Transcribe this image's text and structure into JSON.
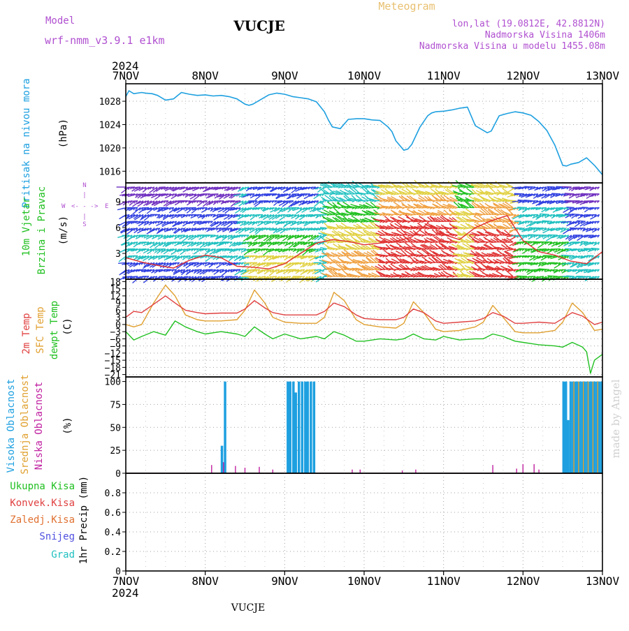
{
  "header": {
    "model_label": "Model",
    "model_name": "wrf-nmm_v3.9.1  e1km",
    "station": "VUCJE",
    "meteogram_label": "Meteogram",
    "lonlat": "lon,lat (19.0812E, 42.8812N)",
    "elevation": "Nadmorska Visina 1406m",
    "model_elevation": "Nadmorska Visina u modelu 1455.08m",
    "footer_station": "VUCJE",
    "watermark": "made by Angel",
    "year": "2024"
  },
  "colors": {
    "pressure": "#1ea0e0",
    "temp2m": "#e04040",
    "sfc_temp": "#e0a030",
    "dewpt": "#20c020",
    "high_cloud": "#1ea0e0",
    "mid_cloud": "#e0a030",
    "low_cloud": "#c020a0",
    "wind_axis_label": "#20c020",
    "grid": "#a0a0a0",
    "meteogram_title": "#e8c070",
    "model_text": "#b050d0",
    "watermark": "#d0d0d0",
    "total_precip": "#20c020",
    "conv_precip": "#e04040",
    "frozen_precip": "#e07030",
    "snow": "#5050e0",
    "hail": "#20c0c0",
    "wind_palette": [
      "#7030c0",
      "#3040e0",
      "#20c0c0",
      "#20c020",
      "#e0d040",
      "#f0a040",
      "#e03030"
    ]
  },
  "axes": {
    "x_ticks": [
      "7NOV",
      "8NOV",
      "9NOV",
      "10NOV",
      "11NOV",
      "12NOV",
      "13NOV"
    ]
  },
  "chart_data": [
    {
      "type": "line",
      "panel": "pressure",
      "ylabel_lines": [
        "Pritisak na nivou mora"
      ],
      "units": "(hPa)",
      "ylim": [
        1014,
        1031
      ],
      "yticks": [
        1016,
        1020,
        1024,
        1028
      ],
      "grid": true,
      "series": [
        {
          "x": [
            0,
            0.04,
            0.1,
            0.2,
            0.25,
            0.33,
            0.4,
            0.5,
            0.6,
            0.7,
            0.8,
            0.9,
            1.0,
            1.1,
            1.2,
            1.3,
            1.4,
            1.5,
            1.55,
            1.6,
            1.7,
            1.8,
            1.9,
            2.0,
            2.1,
            2.2,
            2.3,
            2.4,
            2.5,
            2.55,
            2.6,
            2.7,
            2.8,
            2.9,
            3.0,
            3.1,
            3.2,
            3.3,
            3.35,
            3.4,
            3.5,
            3.55,
            3.6,
            3.7,
            3.8,
            3.85,
            3.9,
            4.0,
            4.1,
            4.2,
            4.3,
            4.4,
            4.5,
            4.55,
            4.6,
            4.7,
            4.8,
            4.9,
            5.0,
            5.1,
            5.2,
            5.3,
            5.4,
            5.5,
            5.55,
            5.6,
            5.7,
            5.8,
            5.9,
            6.0
          ],
          "y": [
            1028.8,
            1029.8,
            1029.3,
            1029.5,
            1029.4,
            1029.3,
            1029.0,
            1028.2,
            1028.4,
            1029.5,
            1029.2,
            1029.0,
            1029.1,
            1028.9,
            1029.0,
            1028.8,
            1028.4,
            1027.5,
            1027.3,
            1027.5,
            1028.3,
            1029.1,
            1029.4,
            1029.2,
            1028.8,
            1028.6,
            1028.4,
            1027.9,
            1026.2,
            1024.8,
            1023.6,
            1023.3,
            1024.9,
            1025.0,
            1025.0,
            1024.8,
            1024.7,
            1023.6,
            1022.8,
            1021.2,
            1019.6,
            1019.8,
            1020.6,
            1023.5,
            1025.5,
            1026.0,
            1026.2,
            1026.3,
            1026.5,
            1026.8,
            1027.0,
            1023.8,
            1023.0,
            1022.6,
            1022.9,
            1025.5,
            1025.9,
            1026.2,
            1026.0,
            1025.6,
            1024.5,
            1023.0,
            1020.5,
            1017.0,
            1016.9,
            1017.2,
            1017.5,
            1018.3,
            1017.0,
            1015.4
          ]
        }
      ]
    },
    {
      "type": "barbs",
      "panel": "wind",
      "ylabel_lines": [
        "10m Vjetar",
        "Brzina i Pravac"
      ],
      "units": "(m/s)",
      "compass_ns": [
        "N",
        "|",
        "S"
      ],
      "compass_we": [
        "W",
        "<",
        "- - -",
        ">",
        "E"
      ],
      "ylim": [
        0,
        11.2
      ],
      "yticks": [
        3,
        6,
        9
      ],
      "grid": true,
      "series": [
        {
          "name": "speed",
          "x": [
            0,
            0.2,
            0.4,
            0.6,
            0.8,
            1.0,
            1.2,
            1.4,
            1.6,
            1.8,
            2.0,
            2.2,
            2.4,
            2.6,
            2.8,
            3.0,
            3.2,
            3.4,
            3.6,
            3.8,
            4.0,
            4.2,
            4.4,
            4.6,
            4.8,
            5.0,
            5.2,
            5.4,
            5.6,
            5.8,
            6.0
          ],
          "y": [
            2.5,
            2.0,
            1.6,
            1.3,
            2.2,
            2.8,
            2.5,
            1.5,
            1.4,
            1.2,
            1.8,
            3.0,
            4.2,
            4.6,
            4.4,
            4.0,
            4.2,
            4.4,
            4.9,
            6.5,
            5.2,
            4.6,
            6.0,
            6.8,
            7.4,
            4.5,
            3.2,
            2.8,
            2.1,
            1.8,
            3.2
          ]
        }
      ]
    },
    {
      "type": "line",
      "panel": "temperature",
      "ylabel_lines": [
        "2m Temp",
        "SFC Temp",
        "dewpt Temp"
      ],
      "units": "(C)",
      "ylim": [
        -22,
        19
      ],
      "yticks": [
        18,
        15,
        12,
        9,
        6,
        3,
        0,
        -3,
        -6,
        -9,
        -12,
        -15,
        -18,
        -21
      ],
      "ytick_labels": [
        "18",
        "15",
        "12",
        "9",
        "6",
        "3",
        "0",
        "−3",
        "−6",
        "−9",
        "−12",
        "−15",
        "−18",
        "−21"
      ],
      "grid": true,
      "series": [
        {
          "name": "2m Temp",
          "x": [
            0,
            0.1,
            0.2,
            0.35,
            0.5,
            0.62,
            0.75,
            0.9,
            1.0,
            1.2,
            1.4,
            1.5,
            1.62,
            1.75,
            1.85,
            2.0,
            2.2,
            2.4,
            2.5,
            2.62,
            2.75,
            2.9,
            3.0,
            3.2,
            3.4,
            3.5,
            3.62,
            3.75,
            3.9,
            4.0,
            4.2,
            4.4,
            4.5,
            4.62,
            4.75,
            4.9,
            5.0,
            5.2,
            5.4,
            5.5,
            5.62,
            5.75,
            5.9,
            6.0
          ],
          "y": [
            3.0,
            5.5,
            5.0,
            8.5,
            12.0,
            9.0,
            6.0,
            5.0,
            4.5,
            4.8,
            4.8,
            6.5,
            10.0,
            7.0,
            5.0,
            4.0,
            4.0,
            4.0,
            5.5,
            9.0,
            7.5,
            4.0,
            2.5,
            2.0,
            2.0,
            3.0,
            6.5,
            5.0,
            1.5,
            0.5,
            1.0,
            1.5,
            2.5,
            5.0,
            3.5,
            0.5,
            0.5,
            1.0,
            0.5,
            2.5,
            5.0,
            3.5,
            0.0,
            1.0
          ]
        },
        {
          "name": "SFC Temp",
          "x": [
            0,
            0.1,
            0.2,
            0.35,
            0.5,
            0.62,
            0.75,
            0.9,
            1.0,
            1.2,
            1.4,
            1.5,
            1.62,
            1.75,
            1.85,
            2.0,
            2.2,
            2.4,
            2.5,
            2.62,
            2.75,
            2.9,
            3.0,
            3.2,
            3.4,
            3.5,
            3.62,
            3.75,
            3.9,
            4.0,
            4.2,
            4.4,
            4.5,
            4.62,
            4.75,
            4.9,
            5.0,
            5.2,
            5.4,
            5.5,
            5.62,
            5.75,
            5.9,
            6.0
          ],
          "y": [
            0.0,
            -1.0,
            0.0,
            9.0,
            16.5,
            12.0,
            4.0,
            2.0,
            1.5,
            1.5,
            2.0,
            6.0,
            14.5,
            9.0,
            3.0,
            1.0,
            0.5,
            0.5,
            3.0,
            13.5,
            10.0,
            2.0,
            0.0,
            -1.0,
            -1.5,
            0.5,
            9.5,
            5.0,
            -2.0,
            -3.0,
            -2.5,
            -1.0,
            1.0,
            8.0,
            3.0,
            -3.0,
            -3.5,
            -3.5,
            -2.5,
            1.0,
            9.0,
            5.0,
            -2.5,
            -2.0
          ]
        },
        {
          "name": "dewpt Temp",
          "x": [
            0,
            0.1,
            0.2,
            0.35,
            0.5,
            0.62,
            0.75,
            0.9,
            1.0,
            1.2,
            1.4,
            1.5,
            1.62,
            1.75,
            1.85,
            2.0,
            2.2,
            2.4,
            2.5,
            2.62,
            2.75,
            2.9,
            3.0,
            3.2,
            3.4,
            3.5,
            3.62,
            3.75,
            3.9,
            4.0,
            4.2,
            4.4,
            4.5,
            4.62,
            4.75,
            4.9,
            5.0,
            5.2,
            5.4,
            5.5,
            5.62,
            5.75,
            5.8,
            5.85,
            5.9,
            6.0
          ],
          "y": [
            -3.0,
            -6.5,
            -5.0,
            -3.0,
            -4.5,
            1.5,
            -1.0,
            -3.0,
            -4.0,
            -3.0,
            -4.0,
            -5.0,
            -1.0,
            -4.0,
            -6.0,
            -4.0,
            -6.0,
            -5.0,
            -6.0,
            -3.0,
            -4.5,
            -7.0,
            -7.0,
            -6.0,
            -6.5,
            -6.0,
            -4.0,
            -6.0,
            -6.5,
            -5.0,
            -6.5,
            -6.0,
            -6.0,
            -4.0,
            -5.0,
            -7.0,
            -7.5,
            -8.5,
            -9.0,
            -9.5,
            -7.5,
            -9.5,
            -11.5,
            -20.5,
            -15.0,
            -12.5
          ]
        }
      ]
    },
    {
      "type": "bar",
      "panel": "clouds",
      "ylabel_lines": [
        "Visoka Oblacnost",
        "Srednja Oblacnost",
        "Niska Oblacnost"
      ],
      "units": "(%)",
      "ylim": [
        0,
        105
      ],
      "yticks": [
        0,
        25,
        50,
        75,
        100
      ],
      "grid": true,
      "series": [
        {
          "name": "Visoka Oblacnost",
          "x": [
            1.21,
            1.25,
            2.04,
            2.07,
            2.11,
            2.14,
            2.18,
            2.22,
            2.26,
            2.29,
            2.33,
            2.37,
            5.51,
            5.54,
            5.57,
            5.6,
            5.63,
            5.66,
            5.69,
            5.72,
            5.75,
            5.78,
            5.81,
            5.84,
            5.87,
            5.9,
            5.93,
            5.96,
            5.99
          ],
          "y": [
            30,
            100,
            100,
            100,
            100,
            88,
            100,
            100,
            100,
            100,
            100,
            100,
            100,
            100,
            58,
            100,
            100,
            100,
            100,
            100,
            100,
            100,
            100,
            100,
            100,
            100,
            100,
            100,
            100
          ]
        },
        {
          "name": "Srednja Oblacnost",
          "x": [
            5.64,
            5.7,
            5.76,
            5.82,
            5.88,
            5.94
          ],
          "y": [
            100,
            100,
            100,
            100,
            100,
            100
          ]
        },
        {
          "name": "Niska Oblacnost",
          "x": [
            1.08,
            1.23,
            1.38,
            1.5,
            1.68,
            1.85,
            2.85,
            2.95,
            3.48,
            3.65,
            4.62,
            4.92,
            5.0,
            5.14,
            5.2
          ],
          "y": [
            9,
            12,
            8,
            6,
            7,
            4,
            4,
            4,
            3,
            4,
            9,
            5,
            10,
            10,
            4
          ]
        }
      ]
    },
    {
      "type": "line",
      "panel": "precipitation",
      "ylabel_lines": [
        "1hr Precip (mm)"
      ],
      "legend": [
        "Ukupna  Kisa",
        "Konvek.Kisa",
        "Zaledj.Kisa",
        "Snijeg",
        "Grad"
      ],
      "ylim": [
        0,
        1.0
      ],
      "yticks": [
        0,
        0.2,
        0.4,
        0.6,
        0.8
      ],
      "ytick_labels": [
        "0",
        "0.2",
        "0.4",
        "0.6",
        "0.8"
      ],
      "grid": true,
      "series": []
    }
  ]
}
